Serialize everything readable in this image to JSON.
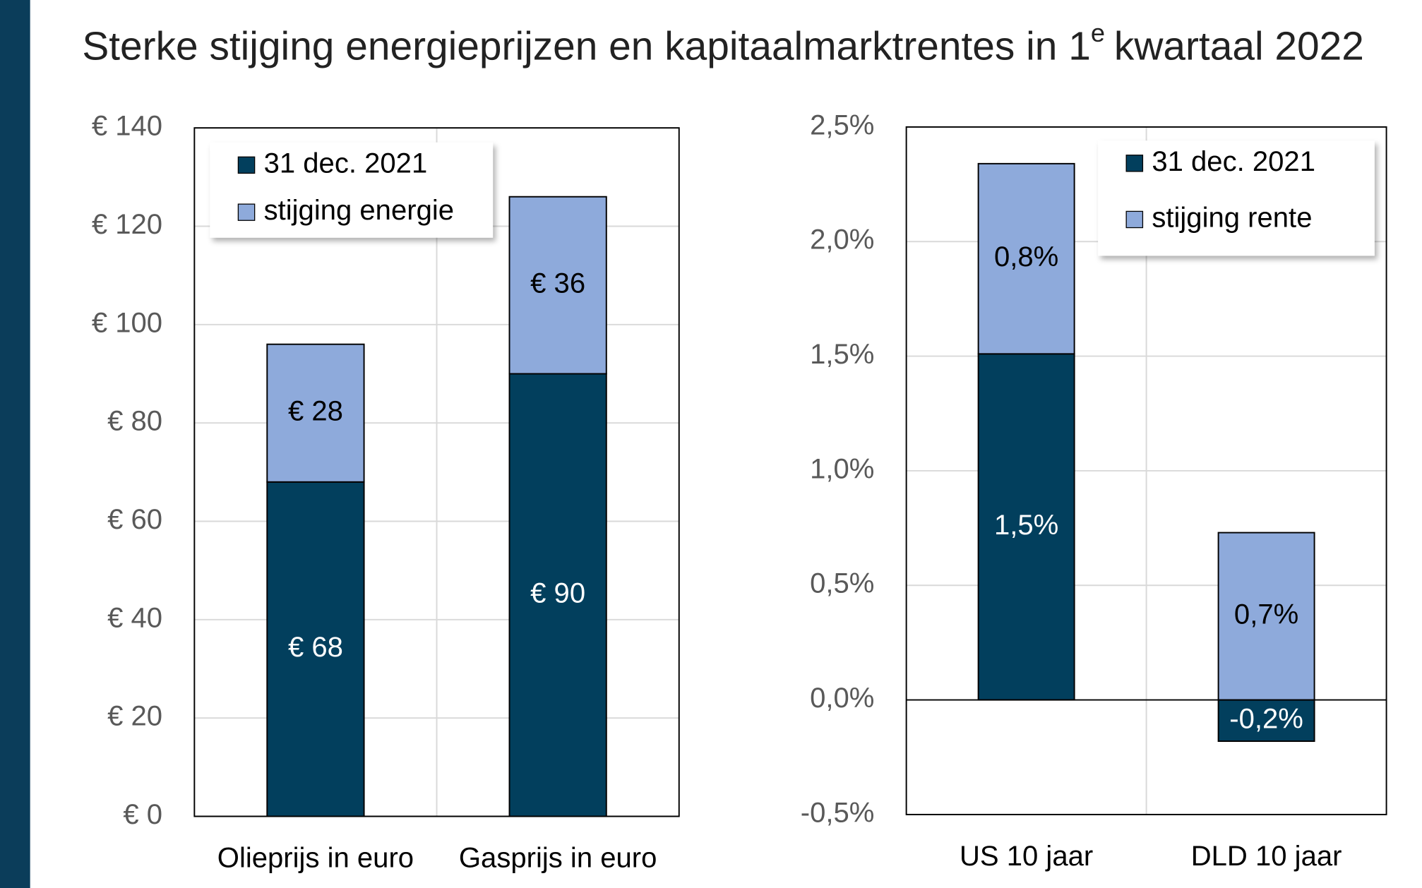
{
  "title": {
    "before": "Sterke stijging energieprijzen en kapitaalmarktrentes in 1",
    "superscript": "e",
    "after": "kwartaal 2022"
  },
  "chart_data": [
    {
      "type": "stacked_bar",
      "categories": [
        "Olieprijs in euro",
        "Gasprijs in euro"
      ],
      "series": [
        {
          "name": "31 dec. 2021",
          "color": "#023f5d",
          "label_color": "#ffffff",
          "values": [
            68,
            90
          ],
          "value_labels": [
            "€ 68",
            "€ 90"
          ]
        },
        {
          "name": "stijging energie",
          "color": "#8eaadb",
          "label_color": "#000000",
          "values": [
            28,
            36
          ],
          "value_labels": [
            "€ 28",
            "€ 36"
          ]
        }
      ],
      "ylim": [
        0,
        140
      ],
      "yticks": [
        {
          "value": 0,
          "label": "€ 0"
        },
        {
          "value": 20,
          "label": "€ 20"
        },
        {
          "value": 40,
          "label": "€ 40"
        },
        {
          "value": 60,
          "label": "€ 60"
        },
        {
          "value": 80,
          "label": "€ 80"
        },
        {
          "value": 100,
          "label": "€ 100"
        },
        {
          "value": 120,
          "label": "€ 120"
        },
        {
          "value": 140,
          "label": "€ 140"
        }
      ],
      "grid": true,
      "legend": "top-left"
    },
    {
      "type": "stacked_bar",
      "categories": [
        "US 10  jaar",
        "DLD 10 jaar"
      ],
      "series": [
        {
          "name": "31 dec. 2021",
          "color": "#023f5d",
          "label_color": "#ffffff",
          "values": [
            1.51,
            -0.18
          ],
          "value_labels": [
            "1,5%",
            "-0,2%"
          ]
        },
        {
          "name": "stijging rente",
          "color": "#8eaadb",
          "label_color": "#000000",
          "values": [
            0.83,
            0.73
          ],
          "value_labels": [
            "0,8%",
            "0,7%"
          ]
        }
      ],
      "ylim": [
        -0.5,
        2.5
      ],
      "yticks": [
        {
          "value": -0.5,
          "label": "-0,5%"
        },
        {
          "value": 0,
          "label": "0,0%"
        },
        {
          "value": 0.5,
          "label": "0,5%"
        },
        {
          "value": 1,
          "label": "1,0%"
        },
        {
          "value": 1.5,
          "label": "1,5%"
        },
        {
          "value": 2,
          "label": "2,0%"
        },
        {
          "value": 2.5,
          "label": "2,5%"
        }
      ],
      "grid": true,
      "legend": "top-right"
    }
  ]
}
